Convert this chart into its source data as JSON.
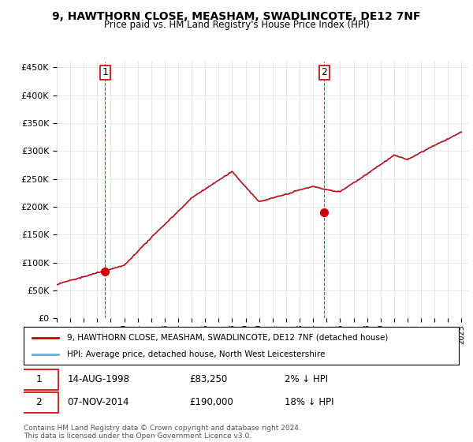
{
  "title": "9, HAWTHORN CLOSE, MEASHAM, SWADLINCOTE, DE12 7NF",
  "subtitle": "Price paid vs. HM Land Registry's House Price Index (HPI)",
  "legend_line1": "9, HAWTHORN CLOSE, MEASHAM, SWADLINCOTE, DE12 7NF (detached house)",
  "legend_line2": "HPI: Average price, detached house, North West Leicestershire",
  "transaction1_label": "1",
  "transaction1_date": "14-AUG-1998",
  "transaction1_price": "£83,250",
  "transaction1_hpi": "2% ↓ HPI",
  "transaction2_label": "2",
  "transaction2_date": "07-NOV-2014",
  "transaction2_price": "£190,000",
  "transaction2_hpi": "18% ↓ HPI",
  "footer": "Contains HM Land Registry data © Crown copyright and database right 2024.\nThis data is licensed under the Open Government Licence v3.0.",
  "hpi_color": "#6baed6",
  "price_color": "#cc0000",
  "marker_color": "#cc0000",
  "vline_color": "#cc0000",
  "label_box_color": "#cc0000",
  "ylim": [
    0,
    460000
  ],
  "yticks": [
    0,
    50000,
    100000,
    150000,
    200000,
    250000,
    300000,
    350000,
    400000,
    450000
  ],
  "background_color": "#ffffff",
  "grid_color": "#dddddd"
}
